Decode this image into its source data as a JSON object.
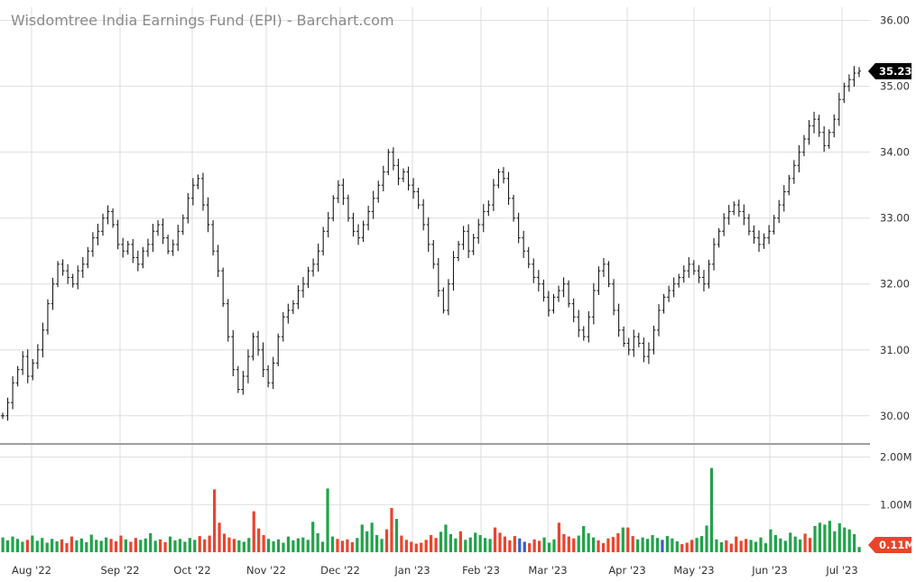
{
  "chart_data": {
    "type": "ohlc",
    "title": "Wisdomtree India Earnings Fund (EPI) - Barchart.com",
    "price_panel": {
      "y_ticks": [
        "36.00",
        "35.00",
        "34.00",
        "33.00",
        "32.00",
        "31.00",
        "30.00"
      ],
      "ylim": [
        29.6,
        36.2
      ],
      "last_price": "35.23",
      "closes": [
        30.0,
        30.2,
        30.5,
        30.7,
        30.9,
        30.6,
        30.8,
        31.0,
        31.3,
        31.7,
        32.0,
        32.3,
        32.2,
        32.1,
        32.0,
        32.2,
        32.3,
        32.5,
        32.7,
        32.8,
        33.0,
        33.1,
        32.9,
        32.6,
        32.5,
        32.6,
        32.4,
        32.3,
        32.5,
        32.6,
        32.8,
        32.9,
        32.7,
        32.5,
        32.6,
        32.8,
        33.0,
        33.3,
        33.5,
        33.6,
        33.2,
        32.9,
        32.5,
        32.2,
        31.7,
        31.2,
        30.7,
        30.4,
        30.6,
        30.9,
        31.2,
        31.0,
        30.7,
        30.5,
        30.8,
        31.2,
        31.5,
        31.6,
        31.7,
        31.9,
        32.0,
        32.2,
        32.3,
        32.5,
        32.8,
        33.0,
        33.3,
        33.5,
        33.3,
        33.0,
        32.8,
        32.7,
        32.9,
        33.1,
        33.3,
        33.5,
        33.7,
        34.0,
        33.8,
        33.6,
        33.7,
        33.5,
        33.4,
        33.2,
        32.9,
        32.6,
        32.3,
        31.9,
        31.6,
        32.0,
        32.4,
        32.6,
        32.8,
        32.5,
        32.7,
        32.9,
        33.1,
        33.2,
        33.5,
        33.7,
        33.6,
        33.3,
        33.0,
        32.7,
        32.5,
        32.3,
        32.1,
        32.0,
        31.8,
        31.6,
        31.8,
        31.9,
        32.0,
        31.7,
        31.5,
        31.3,
        31.2,
        31.5,
        31.9,
        32.2,
        32.3,
        32.0,
        31.6,
        31.3,
        31.1,
        31.0,
        31.2,
        31.1,
        30.9,
        31.0,
        31.3,
        31.6,
        31.8,
        31.9,
        32.0,
        32.1,
        32.2,
        32.3,
        32.2,
        32.1,
        32.0,
        32.3,
        32.6,
        32.8,
        33.0,
        33.1,
        33.2,
        33.1,
        33.0,
        32.8,
        32.7,
        32.6,
        32.7,
        32.8,
        33.0,
        33.2,
        33.4,
        33.6,
        33.8,
        34.0,
        34.2,
        34.4,
        34.5,
        34.3,
        34.1,
        34.3,
        34.5,
        34.8,
        35.0,
        35.1,
        35.2,
        35.23
      ]
    },
    "volume_panel": {
      "y_ticks": [
        "2.00M",
        "1.00M"
      ],
      "ylim": [
        0,
        2.2
      ],
      "last_volume": "0.11M",
      "values": [
        0.31,
        0.25,
        0.33,
        0.28,
        0.22,
        0.26,
        0.35,
        0.24,
        0.3,
        0.2,
        0.28,
        0.23,
        0.27,
        0.19,
        0.33,
        0.25,
        0.29,
        0.21,
        0.37,
        0.26,
        0.24,
        0.31,
        0.28,
        0.23,
        0.35,
        0.27,
        0.22,
        0.3,
        0.26,
        0.29,
        0.4,
        0.24,
        0.27,
        0.21,
        0.33,
        0.25,
        0.28,
        0.22,
        0.3,
        0.26,
        0.34,
        0.27,
        0.35,
        1.32,
        0.62,
        0.39,
        0.31,
        0.28,
        0.25,
        0.22,
        0.3,
        0.86,
        0.5,
        0.36,
        0.28,
        0.23,
        0.27,
        0.2,
        0.33,
        0.25,
        0.29,
        0.31,
        0.26,
        0.64,
        0.4,
        0.22,
        1.34,
        0.33,
        0.28,
        0.24,
        0.27,
        0.21,
        0.3,
        0.58,
        0.44,
        0.62,
        0.36,
        0.28,
        0.48,
        0.93,
        0.7,
        0.35,
        0.26,
        0.22,
        0.18,
        0.2,
        0.26,
        0.36,
        0.3,
        0.43,
        0.58,
        0.38,
        0.29,
        0.44,
        0.26,
        0.31,
        0.41,
        0.36,
        0.3,
        0.28,
        0.52,
        0.41,
        0.33,
        0.25,
        0.34,
        0.29,
        0.22,
        0.19,
        0.27,
        0.24,
        0.31,
        0.2,
        0.27,
        0.62,
        0.38,
        0.33,
        0.29,
        0.35,
        0.55,
        0.4,
        0.31,
        0.25,
        0.19,
        0.29,
        0.32,
        0.4,
        0.52,
        0.52,
        0.34,
        0.27,
        0.31,
        0.28,
        0.36,
        0.3,
        0.26,
        0.34,
        0.29,
        0.23,
        0.17,
        0.2,
        0.26,
        0.3,
        0.34,
        0.56,
        1.77,
        0.27,
        0.21,
        0.25,
        0.18,
        0.33,
        0.24,
        0.28,
        0.26,
        0.22,
        0.31,
        0.19,
        0.48,
        0.36,
        0.29,
        0.24,
        0.41,
        0.33,
        0.27,
        0.39,
        0.3,
        0.55,
        0.62,
        0.58,
        0.66,
        0.44,
        0.61,
        0.52,
        0.48,
        0.38,
        0.11
      ]
    },
    "x_ticks": [
      "Aug '22",
      "Sep '22",
      "Oct '22",
      "Nov '22",
      "Dec '22",
      "Jan '23",
      "Feb '23",
      "Mar '23",
      "Apr '23",
      "May '23",
      "Jun '23",
      "Jul '23"
    ],
    "colors": {
      "up_volume": "#21a34a",
      "down_volume": "#e8452c",
      "neutral_volume": "#3a5bc7",
      "price_bar": "#1a1a1a",
      "last_price_badge": "#000000",
      "last_volume_badge": "#e8452c"
    }
  }
}
